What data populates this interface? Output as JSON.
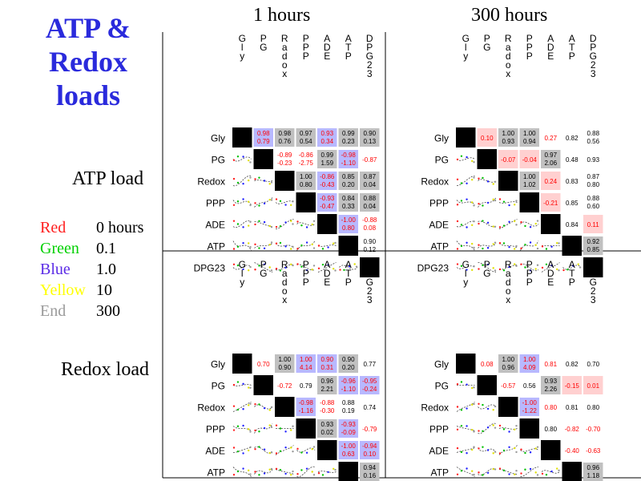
{
  "title_lines": [
    "ATP &",
    "Redox",
    "loads"
  ],
  "column_headers": [
    "1 hours",
    "300 hours"
  ],
  "row_headers": [
    "ATP load",
    "Redox load"
  ],
  "legend": [
    {
      "name": "Red",
      "value": "0 hours",
      "color": "#ff2020"
    },
    {
      "name": "Green",
      "value": "0.1",
      "color": "#00d000"
    },
    {
      "name": "Blue",
      "value": "1.0",
      "color": "#5a2ae6"
    },
    {
      "name": "Yellow",
      "value": "10",
      "color": "#ffff00"
    },
    {
      "name": "End",
      "value": "300",
      "color": "#9a9a9a"
    }
  ],
  "colors": {
    "title": "#2a2adc",
    "cell_gray": "#c0c0c0",
    "cell_blue": "#b8b8ff",
    "cell_pink": "#ffd0d0",
    "text_red": "#ff0000",
    "text_blue": "#2020ff"
  },
  "chart_data": [
    {
      "type": "table",
      "load": "ATP load",
      "time": "1 hours",
      "variables": [
        "Gly",
        "PG",
        "Radox",
        "PPP",
        "ADE",
        "ATP",
        "DPG23"
      ],
      "row_labels": [
        "Gly",
        "PG",
        "Redox",
        "PPP",
        "ADE",
        "ATP",
        "DPG23"
      ],
      "cells": [
        {
          "r": 0,
          "c": 1,
          "top": "0.98",
          "bottom": "0.79",
          "bg": "blue",
          "fg": "red"
        },
        {
          "r": 0,
          "c": 2,
          "top": "0.98",
          "bottom": "0.76",
          "bg": "gray",
          "fg": "black"
        },
        {
          "r": 0,
          "c": 3,
          "top": "0.97",
          "bottom": "0.54",
          "bg": "gray",
          "fg": "black"
        },
        {
          "r": 0,
          "c": 4,
          "top": "0.93",
          "bottom": "0.34",
          "bg": "blue",
          "fg": "red"
        },
        {
          "r": 0,
          "c": 5,
          "top": "0.99",
          "bottom": "0.23",
          "bg": "gray",
          "fg": "black"
        },
        {
          "r": 0,
          "c": 6,
          "top": "0.90",
          "bottom": "0.13",
          "bg": "gray",
          "fg": "black"
        },
        {
          "r": 1,
          "c": 2,
          "top": "-0.89",
          "bottom": "-0.23",
          "bg": "none",
          "fg": "red"
        },
        {
          "r": 1,
          "c": 3,
          "top": "-0.86",
          "bottom": "-2.75",
          "bg": "none",
          "fg": "red"
        },
        {
          "r": 1,
          "c": 4,
          "top": "0.99",
          "bottom": "1.59",
          "bg": "gray",
          "fg": "black"
        },
        {
          "r": 1,
          "c": 5,
          "top": "-0.98",
          "bottom": "-1.10",
          "bg": "blue",
          "fg": "red"
        },
        {
          "r": 1,
          "c": 6,
          "top": "-0.87",
          "bottom": "",
          "bg": "none",
          "fg": "red"
        },
        {
          "r": 2,
          "c": 3,
          "top": "1.00",
          "bottom": "0.80",
          "bg": "gray",
          "fg": "black"
        },
        {
          "r": 2,
          "c": 4,
          "top": "-0.86",
          "bottom": "-0.43",
          "bg": "blue",
          "fg": "red"
        },
        {
          "r": 2,
          "c": 5,
          "top": "0.85",
          "bottom": "0.20",
          "bg": "gray",
          "fg": "black"
        },
        {
          "r": 2,
          "c": 6,
          "top": "0.87",
          "bottom": "0.04",
          "bg": "gray",
          "fg": "black"
        },
        {
          "r": 3,
          "c": 4,
          "top": "-0.93",
          "bottom": "-0.47",
          "bg": "blue",
          "fg": "red"
        },
        {
          "r": 3,
          "c": 5,
          "top": "0.84",
          "bottom": "0.33",
          "bg": "gray",
          "fg": "black"
        },
        {
          "r": 3,
          "c": 6,
          "top": "0.88",
          "bottom": "0.04",
          "bg": "gray",
          "fg": "black"
        },
        {
          "r": 4,
          "c": 5,
          "top": "-1.00",
          "bottom": "0.80",
          "bg": "blue",
          "fg": "red"
        },
        {
          "r": 4,
          "c": 6,
          "top": "-0.88",
          "bottom": "0.08",
          "bg": "none",
          "fg": "red"
        },
        {
          "r": 5,
          "c": 6,
          "top": "0.90",
          "bottom": "0.12",
          "bg": "none",
          "fg": "black"
        }
      ]
    },
    {
      "type": "table",
      "load": "ATP load",
      "time": "300 hours",
      "variables": [
        "Gly",
        "PG",
        "Radox",
        "PPP",
        "ADE",
        "ATP",
        "DPG23"
      ],
      "row_labels": [
        "Gly",
        "PG",
        "Redox",
        "PPP",
        "ADE",
        "ATP",
        "DPG23"
      ],
      "cells": [
        {
          "r": 0,
          "c": 1,
          "top": "0.10",
          "bottom": "",
          "bg": "pink",
          "fg": "red"
        },
        {
          "r": 0,
          "c": 2,
          "top": "1.00",
          "bottom": "0.93",
          "bg": "gray",
          "fg": "black"
        },
        {
          "r": 0,
          "c": 3,
          "top": "1.00",
          "bottom": "0.94",
          "bg": "gray",
          "fg": "black"
        },
        {
          "r": 0,
          "c": 4,
          "top": "0.27",
          "bottom": "",
          "bg": "none",
          "fg": "red"
        },
        {
          "r": 0,
          "c": 5,
          "top": "0.82",
          "bottom": "",
          "bg": "none",
          "fg": "black"
        },
        {
          "r": 0,
          "c": 6,
          "top": "0.88",
          "bottom": "0.56",
          "bg": "none",
          "fg": "black"
        },
        {
          "r": 1,
          "c": 2,
          "top": "-0.07",
          "bottom": "",
          "bg": "pink",
          "fg": "red"
        },
        {
          "r": 1,
          "c": 3,
          "top": "-0.04",
          "bottom": "",
          "bg": "pink",
          "fg": "red"
        },
        {
          "r": 1,
          "c": 4,
          "top": "0.97",
          "bottom": "2.06",
          "bg": "gray",
          "fg": "black"
        },
        {
          "r": 1,
          "c": 5,
          "top": "0.48",
          "bottom": "",
          "bg": "none",
          "fg": "black"
        },
        {
          "r": 1,
          "c": 6,
          "top": "0.93",
          "bottom": "",
          "bg": "none",
          "fg": "black"
        },
        {
          "r": 2,
          "c": 3,
          "top": "1.00",
          "bottom": "1.02",
          "bg": "gray",
          "fg": "black"
        },
        {
          "r": 2,
          "c": 4,
          "top": "0.24",
          "bottom": "",
          "bg": "pink",
          "fg": "red"
        },
        {
          "r": 2,
          "c": 5,
          "top": "0.83",
          "bottom": "",
          "bg": "none",
          "fg": "black"
        },
        {
          "r": 2,
          "c": 6,
          "top": "0.87",
          "bottom": "0.80",
          "bg": "none",
          "fg": "black"
        },
        {
          "r": 3,
          "c": 4,
          "top": "-0.21",
          "bottom": "",
          "bg": "pink",
          "fg": "red"
        },
        {
          "r": 3,
          "c": 5,
          "top": "0.85",
          "bottom": "",
          "bg": "none",
          "fg": "black"
        },
        {
          "r": 3,
          "c": 6,
          "top": "0.88",
          "bottom": "0.60",
          "bg": "none",
          "fg": "black"
        },
        {
          "r": 4,
          "c": 5,
          "top": "0.84",
          "bottom": "",
          "bg": "none",
          "fg": "black"
        },
        {
          "r": 4,
          "c": 6,
          "top": "0.11",
          "bottom": "",
          "bg": "pink",
          "fg": "red"
        },
        {
          "r": 5,
          "c": 6,
          "top": "0.92",
          "bottom": "0.85",
          "bg": "gray",
          "fg": "black"
        }
      ]
    },
    {
      "type": "table",
      "load": "Redox load",
      "time": "1 hours",
      "variables": [
        "Gly",
        "PG",
        "Radox",
        "PPP",
        "ADE",
        "ATP",
        "DPG23"
      ],
      "row_labels": [
        "Gly",
        "PG",
        "Redox",
        "PPP",
        "ADE",
        "ATP",
        "DPG23"
      ],
      "cells": [
        {
          "r": 0,
          "c": 1,
          "top": "0.70",
          "bottom": "",
          "bg": "none",
          "fg": "red"
        },
        {
          "r": 0,
          "c": 2,
          "top": "1.00",
          "bottom": "0.90",
          "bg": "gray",
          "fg": "black"
        },
        {
          "r": 0,
          "c": 3,
          "top": "1.00",
          "bottom": "4.14",
          "bg": "blue",
          "fg": "red"
        },
        {
          "r": 0,
          "c": 4,
          "top": "0.90",
          "bottom": "0.31",
          "bg": "blue",
          "fg": "red"
        },
        {
          "r": 0,
          "c": 5,
          "top": "0.90",
          "bottom": "0.20",
          "bg": "gray",
          "fg": "black"
        },
        {
          "r": 0,
          "c": 6,
          "top": "0.77",
          "bottom": "",
          "bg": "none",
          "fg": "black"
        },
        {
          "r": 1,
          "c": 2,
          "top": "-0.72",
          "bottom": "",
          "bg": "none",
          "fg": "red"
        },
        {
          "r": 1,
          "c": 3,
          "top": "0.79",
          "bottom": "",
          "bg": "none",
          "fg": "black"
        },
        {
          "r": 1,
          "c": 4,
          "top": "0.96",
          "bottom": "2.21",
          "bg": "gray",
          "fg": "black"
        },
        {
          "r": 1,
          "c": 5,
          "top": "-0.96",
          "bottom": "-1.10",
          "bg": "blue",
          "fg": "red"
        },
        {
          "r": 1,
          "c": 6,
          "top": "-0.95",
          "bottom": "-0.24",
          "bg": "blue",
          "fg": "red"
        },
        {
          "r": 2,
          "c": 3,
          "top": "-0.98",
          "bottom": "-1.16",
          "bg": "blue",
          "fg": "red"
        },
        {
          "r": 2,
          "c": 4,
          "top": "-0.88",
          "bottom": "-0.30",
          "bg": "none",
          "fg": "red"
        },
        {
          "r": 2,
          "c": 5,
          "top": "0.88",
          "bottom": "0.19",
          "bg": "none",
          "fg": "black"
        },
        {
          "r": 2,
          "c": 6,
          "top": "0.74",
          "bottom": "",
          "bg": "none",
          "fg": "black"
        },
        {
          "r": 3,
          "c": 4,
          "top": "0.93",
          "bottom": "0.02",
          "bg": "gray",
          "fg": "black"
        },
        {
          "r": 3,
          "c": 5,
          "top": "-0.93",
          "bottom": "-0.09",
          "bg": "blue",
          "fg": "red"
        },
        {
          "r": 3,
          "c": 6,
          "top": "-0.79",
          "bottom": "",
          "bg": "none",
          "fg": "red"
        },
        {
          "r": 4,
          "c": 5,
          "top": "-1.00",
          "bottom": "0.63",
          "bg": "blue",
          "fg": "red"
        },
        {
          "r": 4,
          "c": 6,
          "top": "-0.94",
          "bottom": "0.10",
          "bg": "blue",
          "fg": "red"
        },
        {
          "r": 5,
          "c": 6,
          "top": "0.94",
          "bottom": "0.16",
          "bg": "gray",
          "fg": "black"
        }
      ]
    },
    {
      "type": "table",
      "load": "Redox load",
      "time": "300 hours",
      "variables": [
        "Gly",
        "PG",
        "Radox",
        "PPP",
        "ADE",
        "ATP",
        "DPG23"
      ],
      "row_labels": [
        "Gly",
        "PG",
        "Redox",
        "PPP",
        "ADE",
        "ATP",
        "DPG23"
      ],
      "cells": [
        {
          "r": 0,
          "c": 1,
          "top": "0.08",
          "bottom": "",
          "bg": "none",
          "fg": "red"
        },
        {
          "r": 0,
          "c": 2,
          "top": "1.00",
          "bottom": "0.96",
          "bg": "gray",
          "fg": "black"
        },
        {
          "r": 0,
          "c": 3,
          "top": "1.00",
          "bottom": "4.09",
          "bg": "blue",
          "fg": "red"
        },
        {
          "r": 0,
          "c": 4,
          "top": "0.81",
          "bottom": "",
          "bg": "none",
          "fg": "red"
        },
        {
          "r": 0,
          "c": 5,
          "top": "0.82",
          "bottom": "",
          "bg": "none",
          "fg": "black"
        },
        {
          "r": 0,
          "c": 6,
          "top": "0.70",
          "bottom": "",
          "bg": "none",
          "fg": "black"
        },
        {
          "r": 1,
          "c": 2,
          "top": "-0.57",
          "bottom": "",
          "bg": "none",
          "fg": "red"
        },
        {
          "r": 1,
          "c": 3,
          "top": "0.56",
          "bottom": "",
          "bg": "none",
          "fg": "black"
        },
        {
          "r": 1,
          "c": 4,
          "top": "0.93",
          "bottom": "2.26",
          "bg": "gray",
          "fg": "black"
        },
        {
          "r": 1,
          "c": 5,
          "top": "-0.15",
          "bottom": "",
          "bg": "pink",
          "fg": "red"
        },
        {
          "r": 1,
          "c": 6,
          "top": "0.01",
          "bottom": "",
          "bg": "pink",
          "fg": "red"
        },
        {
          "r": 2,
          "c": 3,
          "top": "-1.00",
          "bottom": "-1.22",
          "bg": "blue",
          "fg": "red"
        },
        {
          "r": 2,
          "c": 4,
          "top": "0.80",
          "bottom": "",
          "bg": "none",
          "fg": "red"
        },
        {
          "r": 2,
          "c": 5,
          "top": "0.81",
          "bottom": "",
          "bg": "none",
          "fg": "black"
        },
        {
          "r": 2,
          "c": 6,
          "top": "0.80",
          "bottom": "",
          "bg": "none",
          "fg": "black"
        },
        {
          "r": 3,
          "c": 4,
          "top": "0.80",
          "bottom": "",
          "bg": "none",
          "fg": "black"
        },
        {
          "r": 3,
          "c": 5,
          "top": "-0.82",
          "bottom": "",
          "bg": "none",
          "fg": "red"
        },
        {
          "r": 3,
          "c": 6,
          "top": "-0.70",
          "bottom": "",
          "bg": "none",
          "fg": "red"
        },
        {
          "r": 4,
          "c": 5,
          "top": "-0.40",
          "bottom": "",
          "bg": "none",
          "fg": "red"
        },
        {
          "r": 4,
          "c": 6,
          "top": "-0.63",
          "bottom": "",
          "bg": "none",
          "fg": "red"
        },
        {
          "r": 5,
          "c": 6,
          "top": "0.96",
          "bottom": "1.18",
          "bg": "gray",
          "fg": "black"
        }
      ]
    }
  ]
}
